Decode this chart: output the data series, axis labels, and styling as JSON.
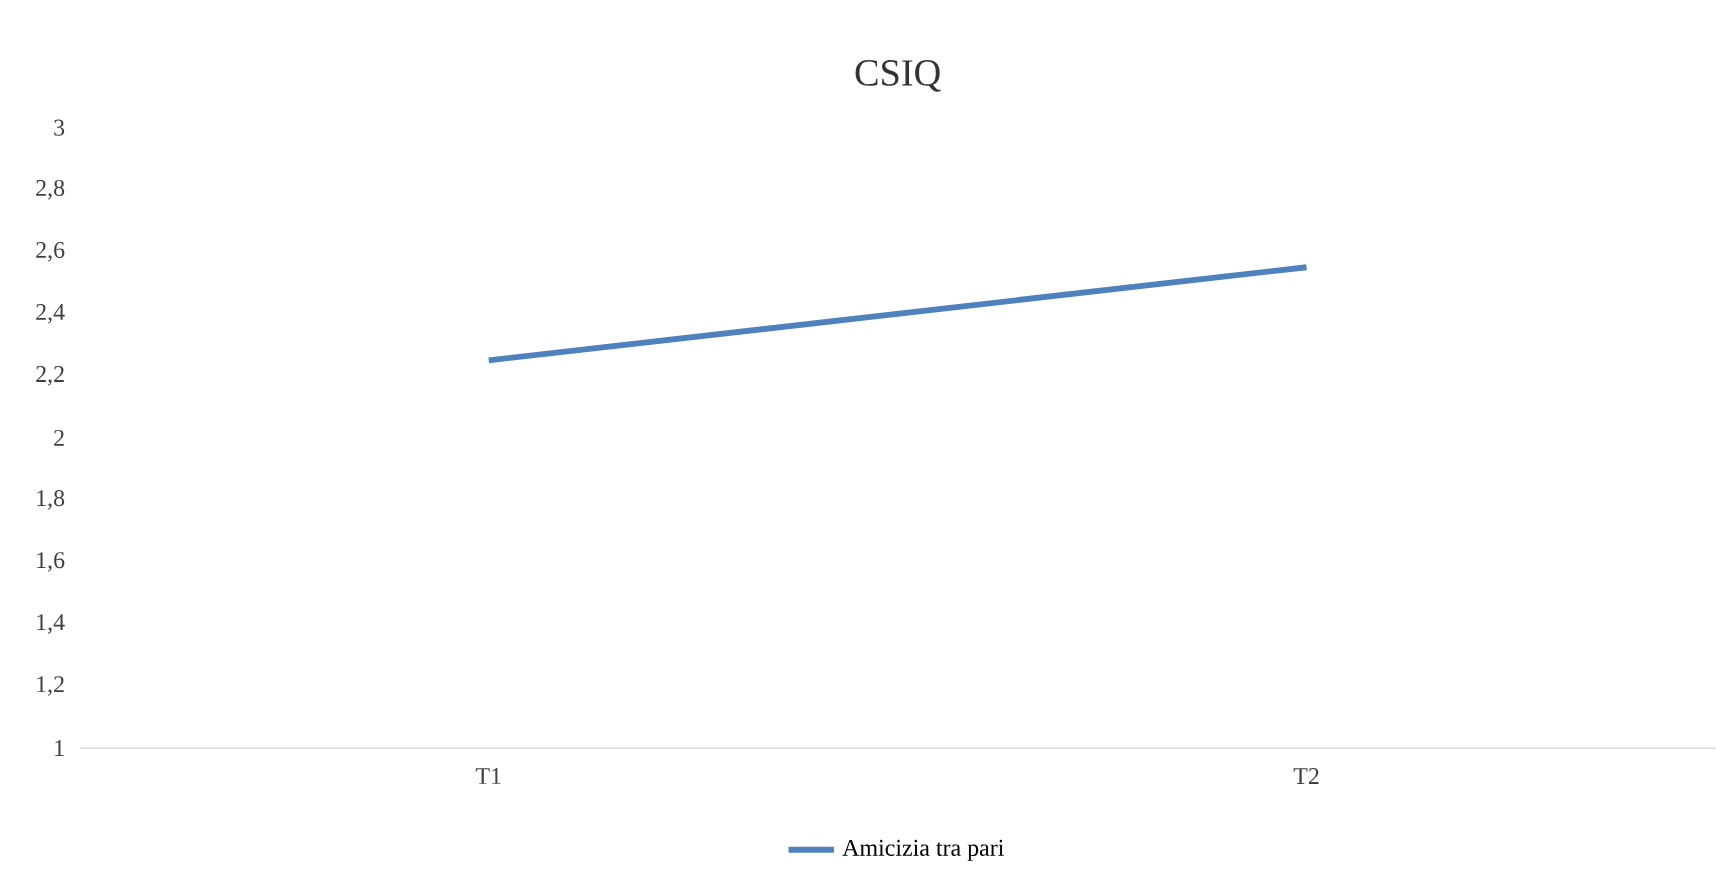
{
  "chart_data": {
    "type": "line",
    "title": "CSIQ",
    "categories": [
      "T1",
      "T2"
    ],
    "series": [
      {
        "name": "Amicizia tra pari",
        "color": "#4f81bd",
        "values": [
          2.25,
          2.55
        ]
      }
    ],
    "ylim": [
      1,
      3
    ],
    "yticks": [
      1,
      {
        "value": 1.2,
        "label": "1,2"
      },
      {
        "value": 1.4,
        "label": "1,4"
      },
      {
        "value": 1.6,
        "label": "1,6"
      },
      {
        "value": 1.8,
        "label": "1,8"
      },
      2,
      {
        "value": 2.2,
        "label": "2,2"
      },
      {
        "value": 2.4,
        "label": "2,4"
      },
      {
        "value": 2.6,
        "label": "2,6"
      },
      {
        "value": 2.8,
        "label": "2,8"
      },
      3
    ],
    "legend": "bottom",
    "marker": "none",
    "line_style": "solid",
    "grid": false
  }
}
